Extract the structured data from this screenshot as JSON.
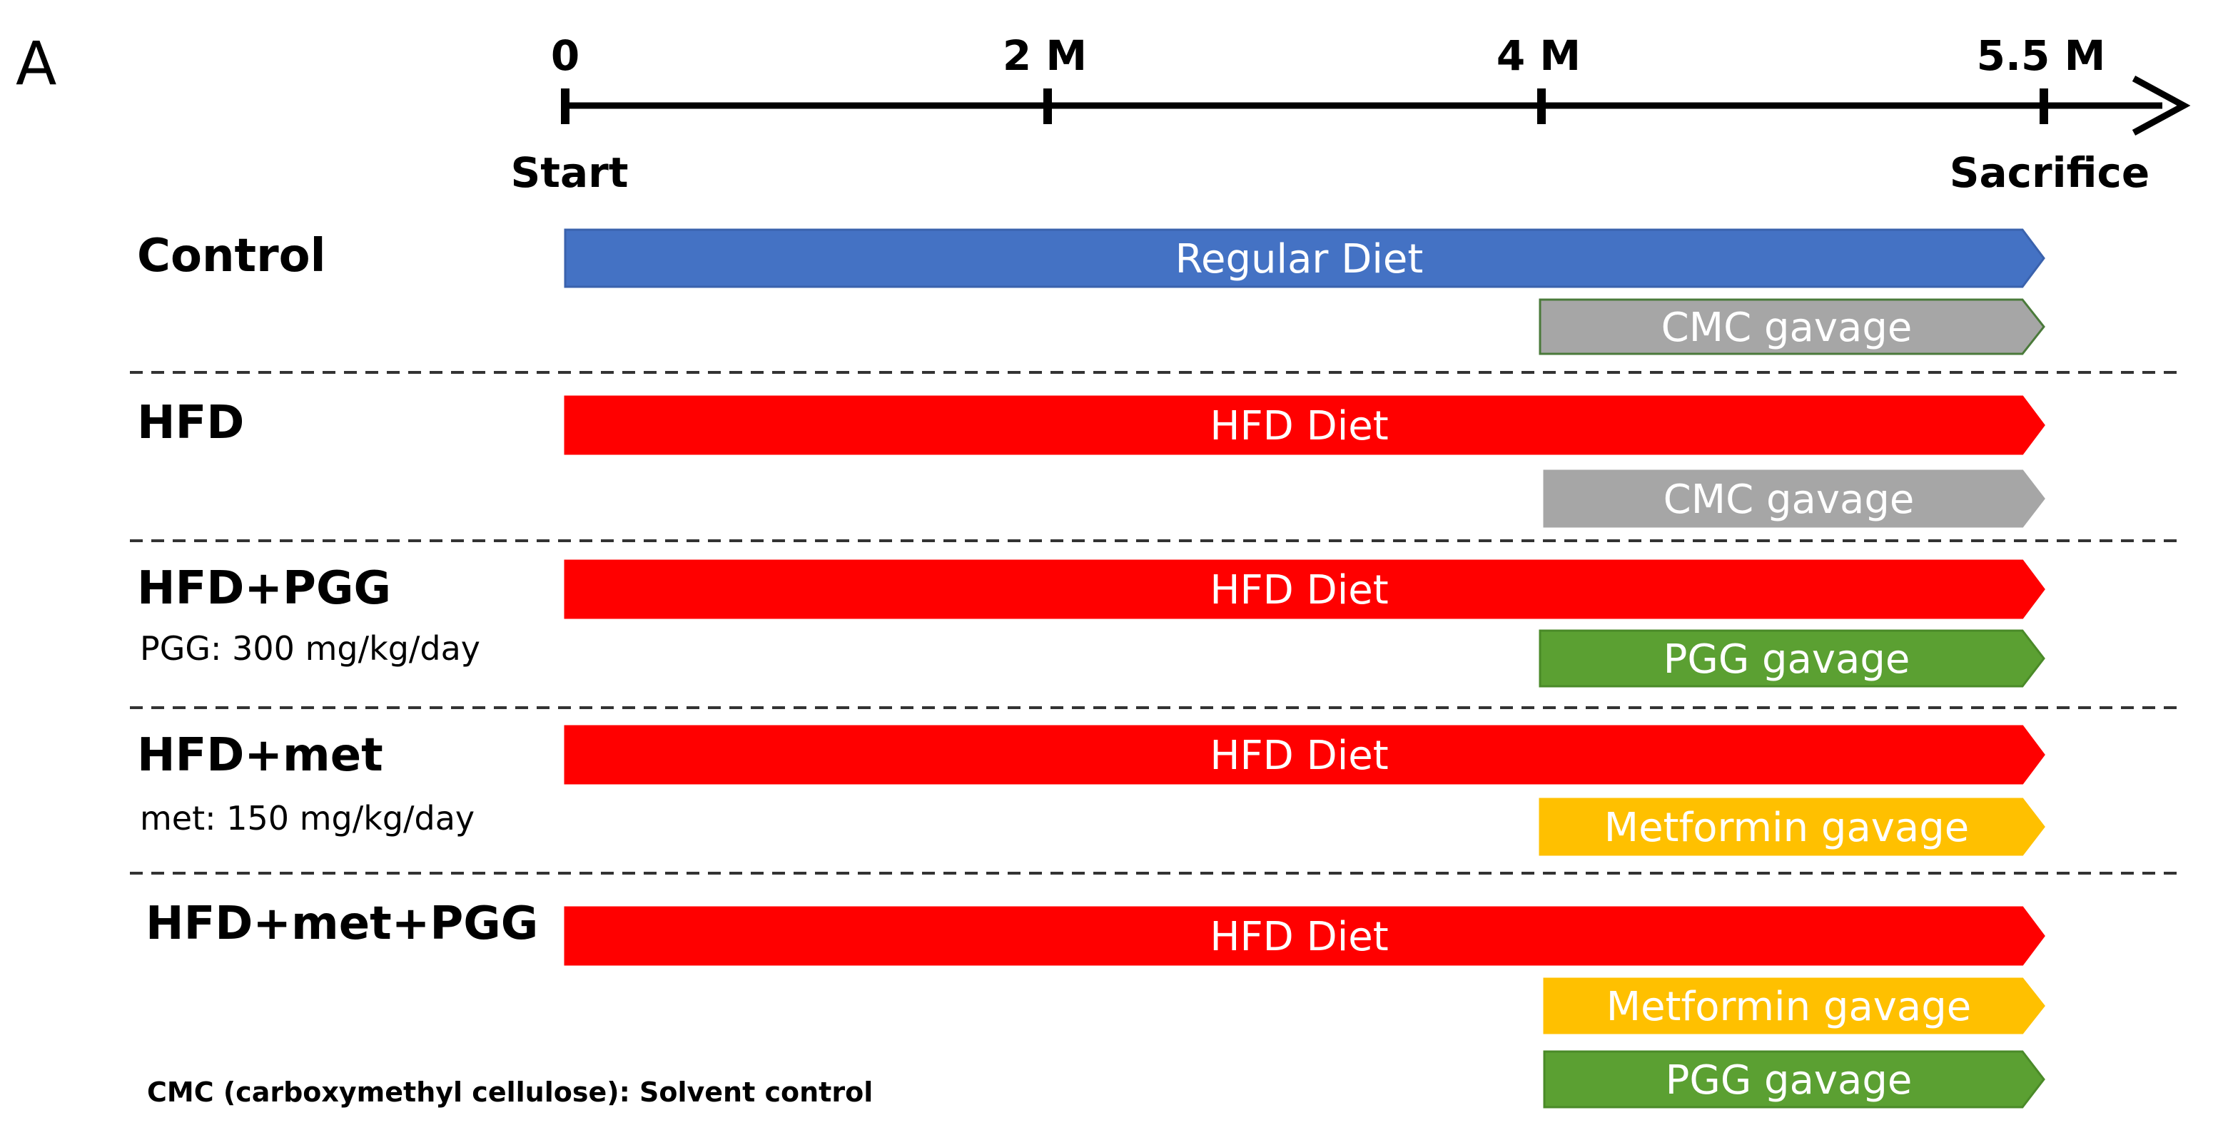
{
  "panel_letter": "A",
  "timeline": {
    "ticks": [
      {
        "label": "0",
        "months": 0
      },
      {
        "label": "2 M",
        "months": 2
      },
      {
        "label": "4 M",
        "months": 4
      },
      {
        "label": "5.5 M",
        "months": 5.5
      }
    ],
    "start_label": "Start",
    "end_label": "Sacrifice"
  },
  "groups": [
    {
      "name": "Control",
      "dose": "",
      "bars": [
        {
          "label": "Regular Diet",
          "start": 0,
          "end": 5.5,
          "color": "#4472C4",
          "border": "#3A62AD"
        },
        {
          "label": "CMC gavage",
          "start": 4,
          "end": 5.5,
          "color": "#A6A6A6",
          "border": "#4A7A3A"
        }
      ]
    },
    {
      "name": "HFD",
      "dose": "",
      "bars": [
        {
          "label": "HFD Diet",
          "start": 0,
          "end": 5.5,
          "color": "#FF0000",
          "border": "#FF0000"
        },
        {
          "label": "CMC gavage",
          "start": 4,
          "end": 5.5,
          "color": "#A6A6A6",
          "border": "#A6A6A6"
        }
      ]
    },
    {
      "name": "HFD+PGG",
      "dose": "PGG: 300 mg/kg/day",
      "bars": [
        {
          "label": "HFD Diet",
          "start": 0,
          "end": 5.5,
          "color": "#FF0000",
          "border": "#FF0000"
        },
        {
          "label": "PGG gavage",
          "start": 4,
          "end": 5.5,
          "color": "#5BA032",
          "border": "#4A8A28"
        }
      ]
    },
    {
      "name": "HFD+met",
      "dose": "met: 150 mg/kg/day",
      "bars": [
        {
          "label": "HFD Diet",
          "start": 0,
          "end": 5.5,
          "color": "#FF0000",
          "border": "#FF0000"
        },
        {
          "label": "Metformin gavage",
          "start": 4,
          "end": 5.5,
          "color": "#FFC000",
          "border": "#FFC000"
        }
      ]
    },
    {
      "name": "HFD+met+PGG",
      "dose": "",
      "bars": [
        {
          "label": "HFD Diet",
          "start": 0,
          "end": 5.5,
          "color": "#FF0000",
          "border": "#FF0000"
        },
        {
          "label": "Metformin gavage",
          "start": 4,
          "end": 5.5,
          "color": "#FFC000",
          "border": "#FFC000"
        },
        {
          "label": "PGG gavage",
          "start": 4,
          "end": 5.5,
          "color": "#5BA032",
          "border": "#4A8A28"
        }
      ]
    }
  ],
  "footnote": "CMC (carboxymethyl cellulose): Solvent control"
}
